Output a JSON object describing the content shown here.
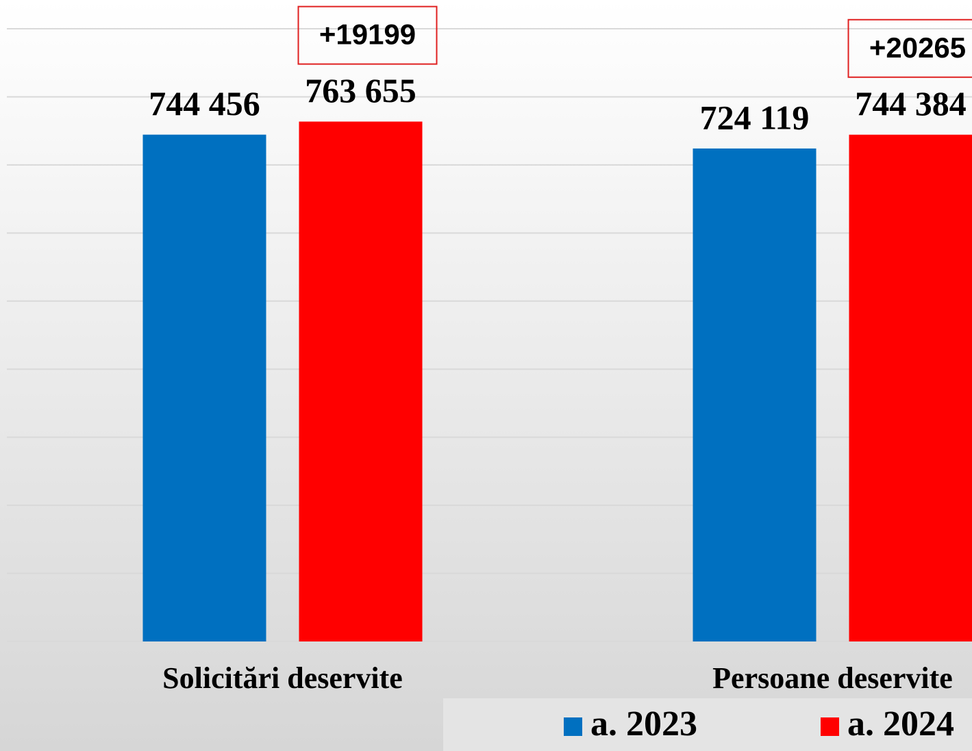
{
  "chart_data": {
    "type": "bar",
    "categories": [
      "Solicitări deservite",
      "Persoane deservite"
    ],
    "series": [
      {
        "name": "a. 2023",
        "color": "#0070c0",
        "values": [
          744456,
          724119
        ],
        "value_labels": [
          "744 456",
          "724 119"
        ]
      },
      {
        "name": "a. 2024",
        "color": "#ff0000",
        "values": [
          763655,
          744384
        ],
        "value_labels": [
          "763 655",
          "744 384"
        ]
      }
    ],
    "annotations": [
      "+19199",
      "+20265"
    ],
    "annotation_color": "#e02020",
    "ylim": [
      0,
      900000
    ],
    "yticks": [
      0,
      100000,
      200000,
      300000,
      400000,
      500000,
      600000,
      700000,
      800000,
      900000
    ],
    "grid": true,
    "legend": "bottom-right"
  }
}
